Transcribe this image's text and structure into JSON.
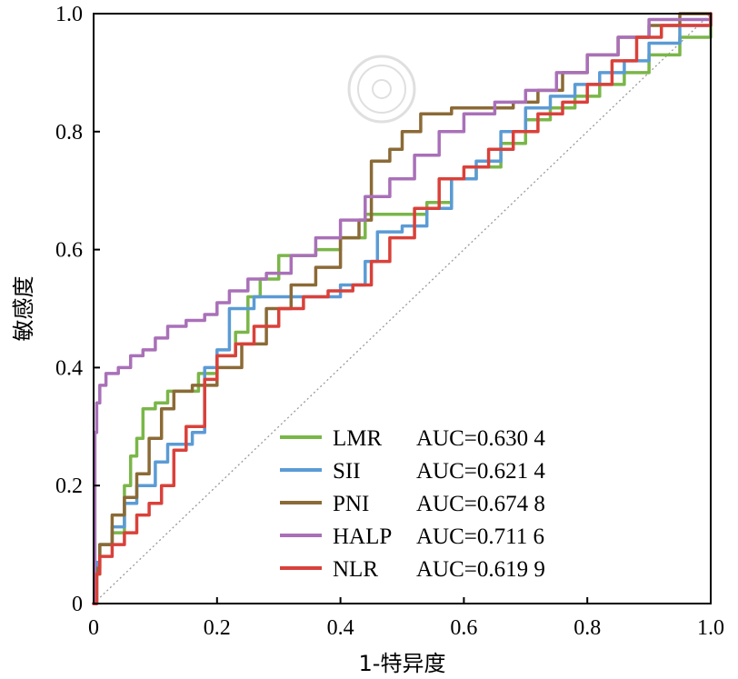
{
  "chart_data": {
    "type": "line",
    "title": "",
    "xlabel": "1-特异度",
    "ylabel": "敏感度",
    "xlim": [
      0,
      1
    ],
    "ylim": [
      0,
      1
    ],
    "x_ticks": [
      "0",
      "0.2",
      "0.4",
      "0.6",
      "0.8",
      "1.0"
    ],
    "y_ticks": [
      "0",
      "0.2",
      "0.4",
      "0.6",
      "0.8",
      "1.0"
    ],
    "grid": false,
    "legend": "bottom-right",
    "reference_line": "diagonal",
    "series": [
      {
        "name": "LMR",
        "label": "AUC=0.630 4",
        "color": "#7ab648",
        "points": [
          [
            0,
            0
          ],
          [
            0.005,
            0.05
          ],
          [
            0.01,
            0.1
          ],
          [
            0.03,
            0.12
          ],
          [
            0.05,
            0.2
          ],
          [
            0.06,
            0.25
          ],
          [
            0.07,
            0.28
          ],
          [
            0.08,
            0.33
          ],
          [
            0.1,
            0.34
          ],
          [
            0.12,
            0.36
          ],
          [
            0.15,
            0.36
          ],
          [
            0.17,
            0.39
          ],
          [
            0.2,
            0.42
          ],
          [
            0.23,
            0.46
          ],
          [
            0.25,
            0.52
          ],
          [
            0.27,
            0.55
          ],
          [
            0.3,
            0.59
          ],
          [
            0.33,
            0.59
          ],
          [
            0.36,
            0.6
          ],
          [
            0.4,
            0.62
          ],
          [
            0.44,
            0.66
          ],
          [
            0.5,
            0.66
          ],
          [
            0.54,
            0.68
          ],
          [
            0.58,
            0.72
          ],
          [
            0.62,
            0.74
          ],
          [
            0.66,
            0.78
          ],
          [
            0.7,
            0.82
          ],
          [
            0.74,
            0.84
          ],
          [
            0.78,
            0.86
          ],
          [
            0.82,
            0.88
          ],
          [
            0.86,
            0.9
          ],
          [
            0.9,
            0.93
          ],
          [
            0.95,
            0.96
          ],
          [
            1,
            1
          ]
        ]
      },
      {
        "name": "SII",
        "label": "AUC=0.621 4",
        "color": "#5b9bd5",
        "points": [
          [
            0,
            0
          ],
          [
            0.005,
            0.07
          ],
          [
            0.01,
            0.1
          ],
          [
            0.03,
            0.13
          ],
          [
            0.05,
            0.17
          ],
          [
            0.07,
            0.2
          ],
          [
            0.1,
            0.24
          ],
          [
            0.12,
            0.27
          ],
          [
            0.16,
            0.29
          ],
          [
            0.18,
            0.4
          ],
          [
            0.2,
            0.43
          ],
          [
            0.22,
            0.5
          ],
          [
            0.26,
            0.52
          ],
          [
            0.3,
            0.52
          ],
          [
            0.33,
            0.52
          ],
          [
            0.4,
            0.54
          ],
          [
            0.44,
            0.58
          ],
          [
            0.46,
            0.63
          ],
          [
            0.5,
            0.64
          ],
          [
            0.54,
            0.67
          ],
          [
            0.58,
            0.72
          ],
          [
            0.62,
            0.75
          ],
          [
            0.66,
            0.8
          ],
          [
            0.7,
            0.84
          ],
          [
            0.74,
            0.86
          ],
          [
            0.78,
            0.88
          ],
          [
            0.82,
            0.9
          ],
          [
            0.86,
            0.92
          ],
          [
            0.9,
            0.95
          ],
          [
            0.95,
            0.98
          ],
          [
            1,
            1
          ]
        ]
      },
      {
        "name": "PNI",
        "label": "AUC=0.674 8",
        "color": "#8b6a36",
        "points": [
          [
            0,
            0
          ],
          [
            0.005,
            0.06
          ],
          [
            0.01,
            0.1
          ],
          [
            0.03,
            0.15
          ],
          [
            0.05,
            0.18
          ],
          [
            0.07,
            0.22
          ],
          [
            0.09,
            0.28
          ],
          [
            0.11,
            0.33
          ],
          [
            0.13,
            0.36
          ],
          [
            0.16,
            0.37
          ],
          [
            0.2,
            0.4
          ],
          [
            0.24,
            0.44
          ],
          [
            0.28,
            0.5
          ],
          [
            0.32,
            0.54
          ],
          [
            0.36,
            0.57
          ],
          [
            0.4,
            0.62
          ],
          [
            0.43,
            0.65
          ],
          [
            0.45,
            0.75
          ],
          [
            0.48,
            0.77
          ],
          [
            0.5,
            0.8
          ],
          [
            0.53,
            0.83
          ],
          [
            0.58,
            0.84
          ],
          [
            0.65,
            0.84
          ],
          [
            0.68,
            0.85
          ],
          [
            0.72,
            0.87
          ],
          [
            0.76,
            0.9
          ],
          [
            0.8,
            0.93
          ],
          [
            0.85,
            0.96
          ],
          [
            0.9,
            0.98
          ],
          [
            0.95,
            1
          ],
          [
            1,
            1
          ]
        ]
      },
      {
        "name": "HALP",
        "label": "AUC=0.711 6",
        "color": "#a970b8",
        "points": [
          [
            0,
            0
          ],
          [
            0.002,
            0.29
          ],
          [
            0.005,
            0.34
          ],
          [
            0.01,
            0.37
          ],
          [
            0.02,
            0.39
          ],
          [
            0.04,
            0.4
          ],
          [
            0.06,
            0.42
          ],
          [
            0.08,
            0.43
          ],
          [
            0.1,
            0.45
          ],
          [
            0.12,
            0.47
          ],
          [
            0.15,
            0.48
          ],
          [
            0.18,
            0.49
          ],
          [
            0.2,
            0.51
          ],
          [
            0.22,
            0.53
          ],
          [
            0.25,
            0.55
          ],
          [
            0.28,
            0.56
          ],
          [
            0.32,
            0.59
          ],
          [
            0.36,
            0.62
          ],
          [
            0.4,
            0.65
          ],
          [
            0.44,
            0.69
          ],
          [
            0.48,
            0.72
          ],
          [
            0.52,
            0.76
          ],
          [
            0.56,
            0.8
          ],
          [
            0.6,
            0.83
          ],
          [
            0.65,
            0.85
          ],
          [
            0.7,
            0.87
          ],
          [
            0.75,
            0.9
          ],
          [
            0.8,
            0.93
          ],
          [
            0.85,
            0.96
          ],
          [
            0.9,
            0.99
          ],
          [
            1,
            1
          ]
        ]
      },
      {
        "name": "NLR",
        "label": "AUC=0.619 9",
        "color": "#d9413a",
        "points": [
          [
            0,
            0
          ],
          [
            0.005,
            0.05
          ],
          [
            0.01,
            0.08
          ],
          [
            0.03,
            0.1
          ],
          [
            0.05,
            0.12
          ],
          [
            0.07,
            0.15
          ],
          [
            0.09,
            0.17
          ],
          [
            0.11,
            0.2
          ],
          [
            0.13,
            0.26
          ],
          [
            0.15,
            0.3
          ],
          [
            0.18,
            0.38
          ],
          [
            0.2,
            0.42
          ],
          [
            0.23,
            0.44
          ],
          [
            0.26,
            0.47
          ],
          [
            0.3,
            0.5
          ],
          [
            0.34,
            0.52
          ],
          [
            0.38,
            0.53
          ],
          [
            0.42,
            0.54
          ],
          [
            0.45,
            0.58
          ],
          [
            0.48,
            0.62
          ],
          [
            0.52,
            0.67
          ],
          [
            0.56,
            0.72
          ],
          [
            0.6,
            0.74
          ],
          [
            0.64,
            0.77
          ],
          [
            0.68,
            0.8
          ],
          [
            0.72,
            0.83
          ],
          [
            0.76,
            0.85
          ],
          [
            0.8,
            0.88
          ],
          [
            0.84,
            0.92
          ],
          [
            0.88,
            0.96
          ],
          [
            0.92,
            0.98
          ],
          [
            1,
            1
          ]
        ]
      }
    ]
  }
}
